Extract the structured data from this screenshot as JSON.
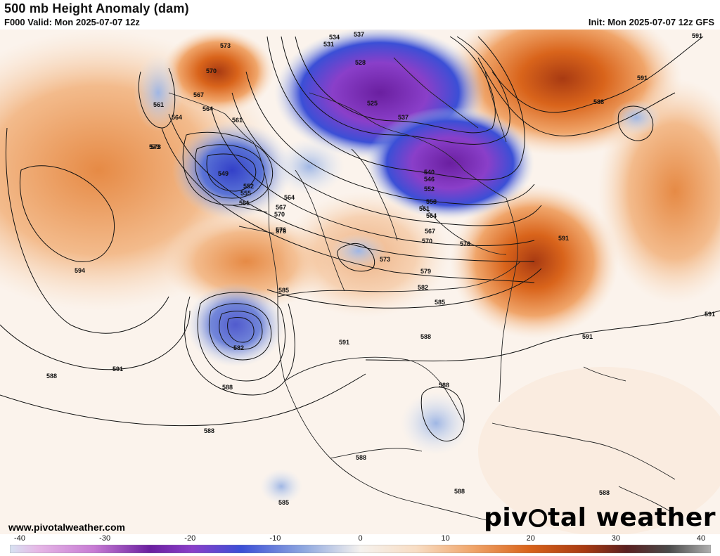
{
  "header": {
    "title": "500 mb Height Anomaly (dam)",
    "valid": "F000 Valid: Mon 2025-07-07 12z",
    "init": "Init: Mon 2025-07-07 12z GFS"
  },
  "footer": {
    "website": "www.pivotalweather.com",
    "brand_left": "piv",
    "brand_right": "tal weather"
  },
  "colorbar": {
    "ticks": [
      "-40",
      "-30",
      "-20",
      "-10",
      "0",
      "10",
      "20",
      "30",
      "40"
    ],
    "colors": {
      "neg_deep": "#c77bd4",
      "neg_purple": "#8a3fc9",
      "neg_blue": "#3b4fd6",
      "neg_mid": "#6f8fd8",
      "neg_light": "#c6d6ee",
      "zero": "#f5f2ee",
      "pos_light": "#f8ddc4",
      "pos_mid": "#f0a56a",
      "pos_strong": "#d9641b",
      "pos_deep": "#a83a12",
      "pos_max": "#5a2020"
    }
  },
  "map": {
    "contour_labels": [
      "534",
      "537",
      "531",
      "528",
      "525",
      "537",
      "540",
      "546",
      "552",
      "558",
      "561",
      "564",
      "567",
      "570",
      "576",
      "573",
      "579",
      "582",
      "585",
      "588",
      "591",
      "594",
      "549",
      "552",
      "555",
      "561",
      "564",
      "567",
      "570",
      "576",
      "564",
      "561",
      "573",
      "570",
      "567",
      "564",
      "573",
      "561",
      "585",
      "582",
      "588",
      "591",
      "588",
      "588",
      "588",
      "585",
      "588",
      "588",
      "588",
      "591",
      "591",
      "591",
      "591",
      "591",
      "588",
      "573",
      "576"
    ]
  }
}
